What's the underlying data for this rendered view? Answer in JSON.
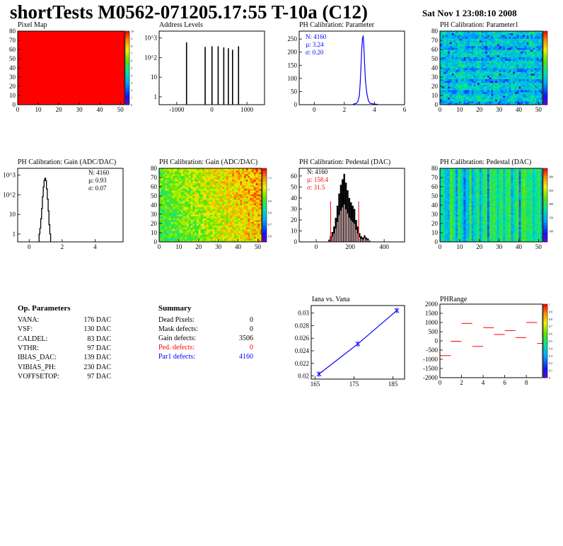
{
  "header": {
    "title": "shortTests M0562-071205.17:55 T-10a (C12)",
    "date": "Sat Nov  1 23:08:10 2008"
  },
  "colors": {
    "red": "#ff0000",
    "blue": "#0000ff",
    "pedfill": "#f6c8c8"
  },
  "chart_data": [
    {
      "id": "pixel-map",
      "type": "heatmap",
      "title": "Pixel Map",
      "x_ticks": [
        "0",
        "10",
        "20",
        "30",
        "40",
        "50"
      ],
      "y_ticks": [
        "0",
        "10",
        "20",
        "30",
        "40",
        "50",
        "60",
        "70",
        "80"
      ],
      "xlim": [
        0,
        52
      ],
      "ylim": [
        0,
        80
      ],
      "z_ticks": [
        "0",
        "1",
        "2",
        "3",
        "4",
        "5",
        "6",
        "7",
        "8",
        "9",
        "10"
      ],
      "uniform_value": 10
    },
    {
      "id": "address-levels",
      "type": "bar",
      "title": "Address Levels",
      "y_scale": "log",
      "x_ticks": [
        "-1000",
        "0",
        "1000"
      ],
      "xlim": [
        -1500,
        1500
      ],
      "y_ticks": [
        "1",
        "10",
        "10^2",
        "10^3"
      ],
      "peaks": [
        {
          "x": -720,
          "y": 600
        },
        {
          "x": -190,
          "y": 350
        },
        {
          "x": 5,
          "y": 380
        },
        {
          "x": 180,
          "y": 380
        },
        {
          "x": 340,
          "y": 330
        },
        {
          "x": 470,
          "y": 300
        },
        {
          "x": 590,
          "y": 250
        },
        {
          "x": 760,
          "y": 380
        }
      ]
    },
    {
      "id": "ph-parameter",
      "type": "line",
      "title": "PH Calibration: Parameter",
      "x_ticks": [
        "0",
        "2",
        "4",
        "6"
      ],
      "xlim": [
        -1,
        6
      ],
      "y_ticks": [
        "0",
        "50",
        "100",
        "150",
        "200",
        "250"
      ],
      "ylim": [
        0,
        280
      ],
      "stats": {
        "n": "N: 4160",
        "mu": "µ: 3.24",
        "sigma": "σ: 0.20"
      },
      "x": [
        2.6,
        2.8,
        2.9,
        3.0,
        3.05,
        3.1,
        3.15,
        3.2,
        3.25,
        3.3,
        3.35,
        3.4,
        3.5,
        3.6,
        3.7,
        3.9,
        4.2
      ],
      "y": [
        2,
        5,
        12,
        35,
        80,
        140,
        200,
        250,
        262,
        220,
        150,
        90,
        40,
        15,
        6,
        3,
        1
      ]
    },
    {
      "id": "ph-parameter1",
      "type": "heatmap",
      "title": "PH Calibration: Parameter1",
      "x_ticks": [
        "0",
        "10",
        "20",
        "30",
        "40",
        "50"
      ],
      "y_ticks": [
        "0",
        "10",
        "20",
        "30",
        "40",
        "50",
        "60",
        "70",
        "80"
      ],
      "xlim": [
        0,
        52
      ],
      "ylim": [
        0,
        80
      ]
    },
    {
      "id": "ph-gain-hist",
      "type": "bar",
      "title": "PH Calibration: Gain (ADC/DAC)",
      "y_scale": "log",
      "x_ticks": [
        "0",
        "2",
        "4"
      ],
      "xlim": [
        -0.7,
        5.7
      ],
      "y_ticks": [
        "1",
        "10",
        "10^2",
        "10^3"
      ],
      "stats": {
        "n": "N: 4160",
        "mu": "µ: 0.93",
        "sigma": "σ: 0.07"
      },
      "x": [
        0.6,
        0.65,
        0.7,
        0.75,
        0.8,
        0.85,
        0.9,
        0.95,
        1.0,
        1.05,
        1.1,
        1.15,
        1.2,
        1.25
      ],
      "y": [
        1,
        2,
        6,
        20,
        80,
        250,
        550,
        700,
        520,
        200,
        60,
        15,
        3,
        1
      ]
    },
    {
      "id": "ph-gain-map",
      "type": "heatmap",
      "title": "PH Calibration: Gain (ADC/DAC)",
      "x_ticks": [
        "0",
        "10",
        "20",
        "30",
        "40",
        "50"
      ],
      "y_ticks": [
        "0",
        "10",
        "20",
        "30",
        "40",
        "50",
        "60",
        "70",
        "80"
      ],
      "xlim": [
        0,
        52
      ],
      "ylim": [
        0,
        80
      ],
      "z_ticks": [
        "0.6",
        "0.7",
        "0.8",
        "0.9",
        "1",
        "1.1"
      ]
    },
    {
      "id": "ph-pedestal-hist",
      "type": "bar",
      "title": "PH Calibration: Pedestal (DAC)",
      "x_ticks": [
        "0",
        "200",
        "400"
      ],
      "xlim": [
        -100,
        520
      ],
      "y_ticks": [
        "0",
        "10",
        "20",
        "30",
        "40",
        "50",
        "60"
      ],
      "ylim": [
        0,
        67
      ],
      "stats": {
        "n": "N: 4160",
        "mu": "µ: 158.4",
        "sigma": "σ: 31.5"
      },
      "cut_lines": [
        85,
        250
      ],
      "x": [
        70,
        80,
        90,
        100,
        110,
        120,
        130,
        140,
        150,
        160,
        170,
        180,
        190,
        200,
        210,
        220,
        230,
        240,
        250,
        260,
        270,
        280,
        290,
        300,
        310
      ],
      "y": [
        2,
        5,
        9,
        14,
        22,
        33,
        44,
        52,
        57,
        62,
        54,
        47,
        40,
        36,
        33,
        30,
        20,
        14,
        8,
        5,
        4,
        6,
        4,
        3,
        1
      ]
    },
    {
      "id": "ph-pedestal-map",
      "type": "heatmap",
      "title": "PH Calibration: Pedestal (DAC)",
      "x_ticks": [
        "0",
        "10",
        "20",
        "30",
        "40",
        "50"
      ],
      "y_ticks": [
        "0",
        "10",
        "20",
        "30",
        "40",
        "50",
        "60",
        "70",
        "80"
      ],
      "xlim": [
        0,
        52
      ],
      "ylim": [
        0,
        80
      ],
      "z_ticks": [
        "100",
        "150",
        "200",
        "250",
        "300"
      ]
    },
    {
      "id": "iana-vs-vana",
      "type": "line",
      "title": "Iana vs. Vana",
      "x_ticks": [
        "165",
        "175",
        "185"
      ],
      "xlim": [
        164,
        188
      ],
      "y_ticks": [
        "0.02",
        "0.022",
        "0.024",
        "0.026",
        "0.028",
        "0.03"
      ],
      "ylim": [
        0.0195,
        0.0312
      ],
      "x": [
        166,
        176,
        186
      ],
      "y": [
        0.0203,
        0.0251,
        0.0304
      ]
    },
    {
      "id": "ph-range",
      "type": "scatter",
      "title": "PHRange",
      "x_ticks": [
        "0",
        "2",
        "4",
        "6",
        "8"
      ],
      "xlim": [
        0,
        9.5
      ],
      "y_ticks": [
        "-2000",
        "-1500",
        "-1000",
        "-500",
        "0",
        "500",
        "1000",
        "1500",
        "2000"
      ],
      "ylim": [
        -2000,
        2000
      ],
      "z_ticks": [
        "0",
        "0.1",
        "0.2",
        "0.3",
        "0.4",
        "0.5",
        "0.6",
        "0.7",
        "0.8",
        "0.9",
        "1"
      ],
      "segments": [
        [
          0,
          -800
        ],
        [
          1,
          -20
        ],
        [
          2,
          950
        ],
        [
          3,
          -300
        ],
        [
          4,
          720
        ],
        [
          5,
          350
        ],
        [
          6,
          560
        ],
        [
          7,
          180
        ],
        [
          8,
          1000
        ],
        [
          9,
          -140
        ]
      ]
    }
  ],
  "op_parameters": {
    "title": "Op. Parameters",
    "rows": [
      {
        "name": "VANA:",
        "value": "176 DAC"
      },
      {
        "name": "VSF:",
        "value": "130 DAC"
      },
      {
        "name": "CALDEL:",
        "value": "83 DAC"
      },
      {
        "name": "VTHR:",
        "value": "97 DAC"
      },
      {
        "name": "IBIAS_DAC:",
        "value": "139 DAC"
      },
      {
        "name": "VIBIAS_PH:",
        "value": "230 DAC"
      },
      {
        "name": "VOFFSETOP:",
        "value": "97 DAC"
      }
    ]
  },
  "summary": {
    "title": "Summary",
    "rows": [
      {
        "name": "Dead Pixels:",
        "value": "0",
        "color": "#000000"
      },
      {
        "name": "Mask defects:",
        "value": "0",
        "color": "#000000"
      },
      {
        "name": "Gain defects:",
        "value": "3506",
        "color": "#000000"
      },
      {
        "name": "Ped. defects:",
        "value": "0",
        "color": "#ff0000"
      },
      {
        "name": "Par1 defects:",
        "value": "4160",
        "color": "#0000ff"
      }
    ]
  }
}
